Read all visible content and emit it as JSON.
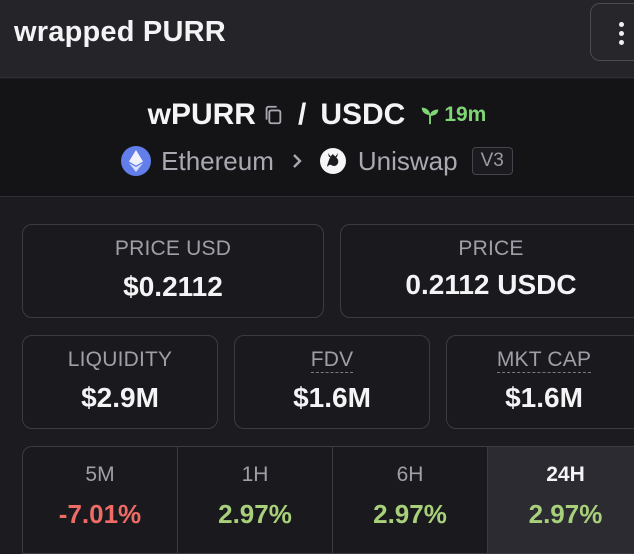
{
  "header": {
    "title": "wrapped PURR"
  },
  "pair": {
    "base": "wPURR",
    "separator": "/",
    "quote": "USDC",
    "age": "19m",
    "chain": "Ethereum",
    "dex": "Uniswap",
    "version": "V3"
  },
  "stats": {
    "price_usd_label": "PRICE USD",
    "price_usd_value": "$0.2112",
    "price_label": "PRICE",
    "price_value": "0.2112 USDC",
    "liquidity_label": "LIQUIDITY",
    "liquidity_value": "$2.9M",
    "fdv_label": "FDV",
    "fdv_value": "$1.6M",
    "mktcap_label": "MKT CAP",
    "mktcap_value": "$1.6M"
  },
  "timeframes": [
    {
      "label": "5M",
      "value": "-7.01%",
      "direction": "negative"
    },
    {
      "label": "1H",
      "value": "2.97%",
      "direction": "positive"
    },
    {
      "label": "6H",
      "value": "2.97%",
      "direction": "positive"
    },
    {
      "label": "24H",
      "value": "2.97%",
      "direction": "positive",
      "selected": true
    }
  ],
  "colors": {
    "background": "#1c1c20",
    "positive": "#a8d07a",
    "negative": "#ee6b66",
    "age_green": "#7fd675"
  }
}
